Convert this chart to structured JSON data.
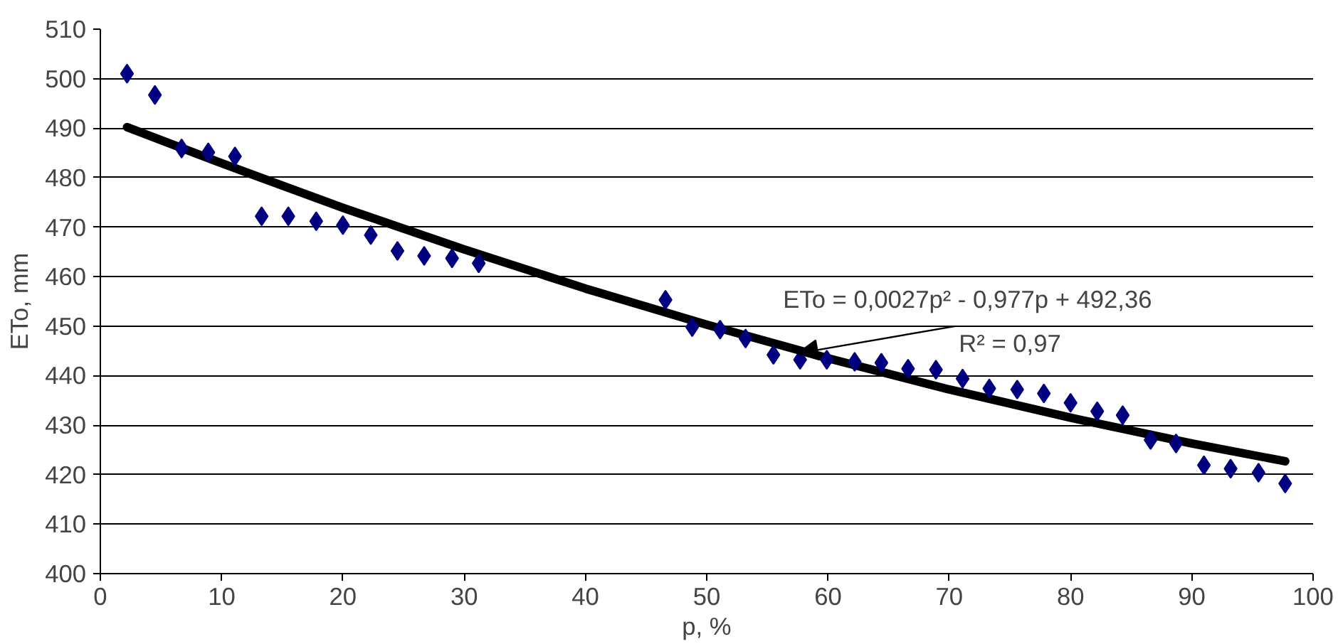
{
  "chart_data": {
    "type": "scatter",
    "xlabel": "p, %",
    "ylabel": "ETo, mm",
    "xlim": [
      0,
      100
    ],
    "xticks": [
      0,
      10,
      20,
      30,
      40,
      50,
      60,
      70,
      80,
      90,
      100
    ],
    "ylim": [
      400,
      510
    ],
    "yticks": [
      400,
      410,
      420,
      430,
      440,
      450,
      460,
      470,
      480,
      490,
      500,
      510
    ],
    "grid": "y",
    "marker": "diamond",
    "series": [
      {
        "color": "#000080",
        "x": [
          2.2,
          4.5,
          6.7,
          8.9,
          11.1,
          13.3,
          15.5,
          17.8,
          20.0,
          22.3,
          24.5,
          26.7,
          29.0,
          31.2,
          46.6,
          48.8,
          51.1,
          53.2,
          55.5,
          57.7,
          59.9,
          62.2,
          64.4,
          66.6,
          68.9,
          71.1,
          73.3,
          75.6,
          77.8,
          80.0,
          82.2,
          84.3,
          86.6,
          88.7,
          91.0,
          93.2,
          95.5,
          97.7
        ],
        "values": [
          501,
          496.7,
          485.9,
          485.1,
          484.3,
          472.2,
          472.2,
          471.2,
          470.4,
          468.4,
          465.2,
          464.2,
          463.7,
          462.7,
          455.3,
          449.8,
          449.3,
          447.5,
          444.2,
          443.2,
          443.2,
          442.8,
          442.6,
          441.4,
          441.2,
          439.4,
          437.4,
          437.2,
          436.4,
          434.5,
          432.8,
          432,
          427,
          426.3,
          421.9,
          421.2,
          420.4,
          418.2
        ]
      },
      {
        "type": "line",
        "color": "#000000",
        "marker": "none",
        "x": [
          2.2,
          10,
          20,
          30,
          40,
          50,
          60,
          70,
          80,
          90,
          97.7
        ],
        "values": [
          490.2,
          482.9,
          473.9,
          465.5,
          457.6,
          450.3,
          443.5,
          437.2,
          431.5,
          426.3,
          422.7
        ]
      }
    ],
    "annotations": [
      {
        "text": "ETo = 0,0027p² - 0,977p + 492,36\nR² = 0,97",
        "x": 57.5,
        "y": 444.5
      }
    ]
  }
}
